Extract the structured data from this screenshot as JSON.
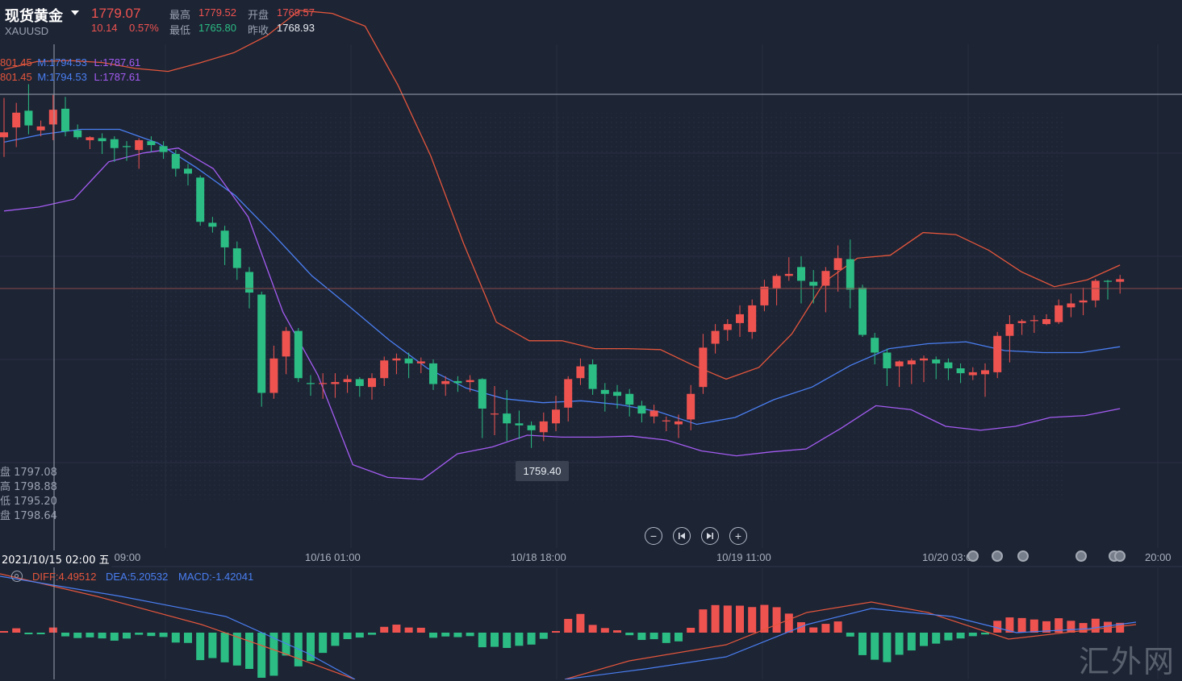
{
  "header": {
    "instrument_name": "现货黄金",
    "symbol": "XAUUSD",
    "last_price": "1779.07",
    "change": "10.14",
    "change_pct": "0.57%",
    "high_label": "最高",
    "high_value": "1779.52",
    "low_label": "最低",
    "low_value": "1765.80",
    "open_label": "开盘",
    "open_value": "1769.57",
    "prev_close_label": "昨收",
    "prev_close_value": "1768.93"
  },
  "bollinger": {
    "upper_text": "801.45",
    "mid_text": "M:1794.53",
    "lower_text": "L:1787.61"
  },
  "crosshair": {
    "ohlc": [
      "盘 1797.08",
      "高 1798.88",
      "低 1795.20",
      "盘 1798.64"
    ],
    "time": "2021/10/15 02:00 五",
    "low_tooltip": "1759.40"
  },
  "time_axis": [
    "/15 09:00",
    "10/16 01:00",
    "10/18 18:00",
    "10/19 11:00",
    "10/20 03:00",
    "20:00"
  ],
  "controls": {
    "zoom_out": "−",
    "zoom_in": "+",
    "icons": [
      "minus-icon",
      "skip-back-icon",
      "skip-forward-icon",
      "plus-icon"
    ]
  },
  "macd": {
    "diff_text": "DIFF:4.49512",
    "dea_text": "DEA:5.20532",
    "macd_text": "MACD:-1.42041"
  },
  "watermark": "汇外网",
  "colors": {
    "background": "#1d2434",
    "up": "#ef5350",
    "down": "#2bbd84",
    "boll_upper": "#e4563c",
    "boll_mid": "#4a7ff2",
    "boll_lower": "#a45cf2",
    "dea": "#4a7ff2",
    "diff": "#e4563c"
  },
  "chart_data": {
    "type": "candlestick",
    "price_axis": [
      1755,
      1805
    ],
    "candles": [
      {
        "o": 1793.5,
        "h": 1797.5,
        "l": 1791.5,
        "c": 1794.0
      },
      {
        "o": 1794.5,
        "h": 1797.0,
        "l": 1792.5,
        "c": 1796.0
      },
      {
        "o": 1796.2,
        "h": 1798.9,
        "l": 1793.8,
        "c": 1794.7
      },
      {
        "o": 1794.2,
        "h": 1795.2,
        "l": 1793.6,
        "c": 1794.6
      },
      {
        "o": 1794.8,
        "h": 1797.8,
        "l": 1793.2,
        "c": 1796.3
      },
      {
        "o": 1796.4,
        "h": 1797.6,
        "l": 1793.6,
        "c": 1794.1
      },
      {
        "o": 1794.2,
        "h": 1794.8,
        "l": 1793.3,
        "c": 1793.5
      },
      {
        "o": 1793.2,
        "h": 1793.6,
        "l": 1792.3,
        "c": 1793.5
      },
      {
        "o": 1793.4,
        "h": 1793.9,
        "l": 1791.8,
        "c": 1793.1
      },
      {
        "o": 1793.3,
        "h": 1793.6,
        "l": 1791.0,
        "c": 1792.4
      },
      {
        "o": 1792.6,
        "h": 1793.1,
        "l": 1791.1,
        "c": 1792.5
      },
      {
        "o": 1792.2,
        "h": 1793.4,
        "l": 1790.3,
        "c": 1793.2
      },
      {
        "o": 1793.1,
        "h": 1793.6,
        "l": 1792.0,
        "c": 1792.7
      },
      {
        "o": 1792.6,
        "h": 1793.1,
        "l": 1791.3,
        "c": 1792.0
      },
      {
        "o": 1791.8,
        "h": 1792.2,
        "l": 1789.5,
        "c": 1790.3
      },
      {
        "o": 1790.3,
        "h": 1790.8,
        "l": 1788.6,
        "c": 1789.8
      },
      {
        "o": 1789.4,
        "h": 1789.6,
        "l": 1784.5,
        "c": 1784.9
      },
      {
        "o": 1784.8,
        "h": 1785.4,
        "l": 1783.8,
        "c": 1784.4
      },
      {
        "o": 1784.0,
        "h": 1784.5,
        "l": 1780.5,
        "c": 1782.3
      },
      {
        "o": 1782.2,
        "h": 1782.9,
        "l": 1779.0,
        "c": 1780.2
      },
      {
        "o": 1779.8,
        "h": 1780.3,
        "l": 1776.1,
        "c": 1777.7
      },
      {
        "o": 1777.5,
        "h": 1777.8,
        "l": 1766.1,
        "c": 1767.5
      },
      {
        "o": 1767.5,
        "h": 1772.3,
        "l": 1766.9,
        "c": 1771.0
      },
      {
        "o": 1771.2,
        "h": 1774.2,
        "l": 1769.4,
        "c": 1773.8
      },
      {
        "o": 1773.8,
        "h": 1774.1,
        "l": 1768.6,
        "c": 1769.0
      },
      {
        "o": 1768.5,
        "h": 1769.3,
        "l": 1767.2,
        "c": 1768.4
      },
      {
        "o": 1768.4,
        "h": 1769.5,
        "l": 1766.9,
        "c": 1768.5
      },
      {
        "o": 1768.4,
        "h": 1769.5,
        "l": 1767.0,
        "c": 1768.6
      },
      {
        "o": 1768.6,
        "h": 1769.3,
        "l": 1767.5,
        "c": 1768.9
      },
      {
        "o": 1768.9,
        "h": 1769.1,
        "l": 1767.1,
        "c": 1768.2
      },
      {
        "o": 1768.1,
        "h": 1769.5,
        "l": 1766.8,
        "c": 1769.0
      },
      {
        "o": 1769.0,
        "h": 1771.2,
        "l": 1768.2,
        "c": 1770.8
      },
      {
        "o": 1770.8,
        "h": 1771.5,
        "l": 1769.4,
        "c": 1771.0
      },
      {
        "o": 1771.0,
        "h": 1771.6,
        "l": 1769.0,
        "c": 1770.5
      },
      {
        "o": 1770.5,
        "h": 1771.1,
        "l": 1769.5,
        "c": 1770.7
      },
      {
        "o": 1770.5,
        "h": 1770.9,
        "l": 1767.8,
        "c": 1768.4
      },
      {
        "o": 1768.4,
        "h": 1769.2,
        "l": 1767.2,
        "c": 1768.7
      },
      {
        "o": 1768.7,
        "h": 1769.2,
        "l": 1767.6,
        "c": 1768.5
      },
      {
        "o": 1768.6,
        "h": 1769.3,
        "l": 1767.6,
        "c": 1768.8
      },
      {
        "o": 1768.9,
        "h": 1769.0,
        "l": 1762.9,
        "c": 1765.9
      },
      {
        "o": 1765.3,
        "h": 1768.2,
        "l": 1763.2,
        "c": 1765.4
      },
      {
        "o": 1765.4,
        "h": 1767.8,
        "l": 1762.6,
        "c": 1764.4
      },
      {
        "o": 1764.4,
        "h": 1765.7,
        "l": 1762.8,
        "c": 1764.2
      },
      {
        "o": 1764.2,
        "h": 1764.6,
        "l": 1761.9,
        "c": 1763.7
      },
      {
        "o": 1763.5,
        "h": 1765.5,
        "l": 1762.6,
        "c": 1764.6
      },
      {
        "o": 1764.4,
        "h": 1767.2,
        "l": 1763.6,
        "c": 1765.8
      },
      {
        "o": 1766.0,
        "h": 1769.2,
        "l": 1764.6,
        "c": 1768.9
      },
      {
        "o": 1769.0,
        "h": 1771.0,
        "l": 1768.3,
        "c": 1770.2
      },
      {
        "o": 1770.4,
        "h": 1770.9,
        "l": 1767.3,
        "c": 1767.9
      },
      {
        "o": 1767.8,
        "h": 1768.5,
        "l": 1765.6,
        "c": 1767.4
      },
      {
        "o": 1767.6,
        "h": 1768.3,
        "l": 1765.9,
        "c": 1767.2
      },
      {
        "o": 1767.4,
        "h": 1767.9,
        "l": 1765.1,
        "c": 1766.3
      },
      {
        "o": 1766.2,
        "h": 1766.7,
        "l": 1764.5,
        "c": 1765.4
      },
      {
        "o": 1765.1,
        "h": 1766.3,
        "l": 1764.4,
        "c": 1765.7
      },
      {
        "o": 1764.6,
        "h": 1765.1,
        "l": 1763.6,
        "c": 1764.7
      },
      {
        "o": 1764.3,
        "h": 1765.3,
        "l": 1762.9,
        "c": 1764.6
      },
      {
        "o": 1764.8,
        "h": 1768.3,
        "l": 1763.7,
        "c": 1767.4
      },
      {
        "o": 1768.1,
        "h": 1773.5,
        "l": 1767.4,
        "c": 1772.1
      },
      {
        "o": 1772.5,
        "h": 1774.5,
        "l": 1771.5,
        "c": 1773.8
      },
      {
        "o": 1773.9,
        "h": 1775.0,
        "l": 1772.8,
        "c": 1774.5
      },
      {
        "o": 1774.6,
        "h": 1776.4,
        "l": 1773.2,
        "c": 1775.5
      },
      {
        "o": 1773.7,
        "h": 1777.0,
        "l": 1773.0,
        "c": 1776.4
      },
      {
        "o": 1776.4,
        "h": 1779.0,
        "l": 1775.8,
        "c": 1778.3
      },
      {
        "o": 1778.1,
        "h": 1779.6,
        "l": 1776.4,
        "c": 1779.4
      },
      {
        "o": 1779.4,
        "h": 1781.3,
        "l": 1778.9,
        "c": 1779.6
      },
      {
        "o": 1780.3,
        "h": 1781.4,
        "l": 1776.6,
        "c": 1778.9
      },
      {
        "o": 1778.8,
        "h": 1780.0,
        "l": 1776.6,
        "c": 1778.4
      },
      {
        "o": 1778.4,
        "h": 1780.3,
        "l": 1775.7,
        "c": 1779.9
      },
      {
        "o": 1780.0,
        "h": 1782.5,
        "l": 1777.8,
        "c": 1781.2
      },
      {
        "o": 1781.1,
        "h": 1783.1,
        "l": 1776.1,
        "c": 1778.0
      },
      {
        "o": 1778.2,
        "h": 1778.5,
        "l": 1773.2,
        "c": 1773.4
      },
      {
        "o": 1773.1,
        "h": 1773.6,
        "l": 1770.4,
        "c": 1771.6
      },
      {
        "o": 1771.6,
        "h": 1772.0,
        "l": 1768.2,
        "c": 1770.0
      },
      {
        "o": 1770.2,
        "h": 1770.8,
        "l": 1768.1,
        "c": 1770.7
      },
      {
        "o": 1770.4,
        "h": 1771.0,
        "l": 1768.4,
        "c": 1770.8
      },
      {
        "o": 1770.8,
        "h": 1771.3,
        "l": 1768.6,
        "c": 1771.0
      },
      {
        "o": 1770.9,
        "h": 1771.2,
        "l": 1768.9,
        "c": 1770.5
      },
      {
        "o": 1770.6,
        "h": 1771.0,
        "l": 1768.8,
        "c": 1770.0
      },
      {
        "o": 1770.0,
        "h": 1770.5,
        "l": 1768.5,
        "c": 1769.5
      },
      {
        "o": 1769.3,
        "h": 1770.1,
        "l": 1768.8,
        "c": 1769.6
      },
      {
        "o": 1769.4,
        "h": 1770.5,
        "l": 1767.1,
        "c": 1769.8
      },
      {
        "o": 1769.6,
        "h": 1773.7,
        "l": 1769.0,
        "c": 1773.3
      },
      {
        "o": 1773.3,
        "h": 1775.4,
        "l": 1770.6,
        "c": 1774.5
      },
      {
        "o": 1774.6,
        "h": 1775.0,
        "l": 1773.4,
        "c": 1774.8
      },
      {
        "o": 1774.8,
        "h": 1775.4,
        "l": 1773.6,
        "c": 1774.9
      },
      {
        "o": 1774.5,
        "h": 1775.5,
        "l": 1774.4,
        "c": 1775.0
      },
      {
        "o": 1774.7,
        "h": 1777.0,
        "l": 1774.5,
        "c": 1776.4
      },
      {
        "o": 1776.2,
        "h": 1777.6,
        "l": 1775.2,
        "c": 1776.6
      },
      {
        "o": 1776.7,
        "h": 1778.2,
        "l": 1775.4,
        "c": 1776.9
      },
      {
        "o": 1776.9,
        "h": 1779.1,
        "l": 1776.2,
        "c": 1778.9
      },
      {
        "o": 1778.9,
        "h": 1779.0,
        "l": 1777.0,
        "c": 1778.8
      },
      {
        "o": 1778.8,
        "h": 1779.5,
        "l": 1777.6,
        "c": 1779.07
      }
    ],
    "boll_upper": [
      1800.4,
      1801.2,
      1801.3,
      1801.1,
      1800.5,
      1800.2,
      1801.1,
      1802.1,
      1803.8,
      1806.4,
      1806.1,
      1804.8,
      1798.8,
      1791.6,
      1782.7,
      1774.7,
      1772.8,
      1772.8,
      1772.0,
      1772.0,
      1771.9,
      1770.3,
      1768.9,
      1770.1,
      1773.5,
      1778.8,
      1781.2,
      1781.5,
      1783.8,
      1783.6,
      1782.0,
      1779.8,
      1778.3,
      1779.0,
      1780.5
    ],
    "boll_mid": [
      1793.0,
      1793.8,
      1794.3,
      1794.3,
      1792.9,
      1790.4,
      1787.6,
      1783.6,
      1779.4,
      1776.2,
      1772.9,
      1770.0,
      1768.0,
      1766.9,
      1766.5,
      1766.7,
      1766.3,
      1765.6,
      1764.3,
      1765.0,
      1766.8,
      1768.1,
      1770.3,
      1772.0,
      1772.5,
      1772.7,
      1771.8,
      1771.6,
      1771.6,
      1772.2
    ],
    "boll_lower": [
      1786.0,
      1786.4,
      1787.2,
      1791.0,
      1791.9,
      1792.4,
      1790.3,
      1785.4,
      1775.7,
      1769.3,
      1760.2,
      1758.9,
      1758.7,
      1761.3,
      1762.0,
      1763.2,
      1763.0,
      1763.0,
      1763.1,
      1762.7,
      1761.6,
      1761.1,
      1761.5,
      1761.8,
      1763.9,
      1766.2,
      1765.8,
      1764.1,
      1763.7,
      1764.1,
      1765.0,
      1765.2,
      1765.9
    ]
  }
}
